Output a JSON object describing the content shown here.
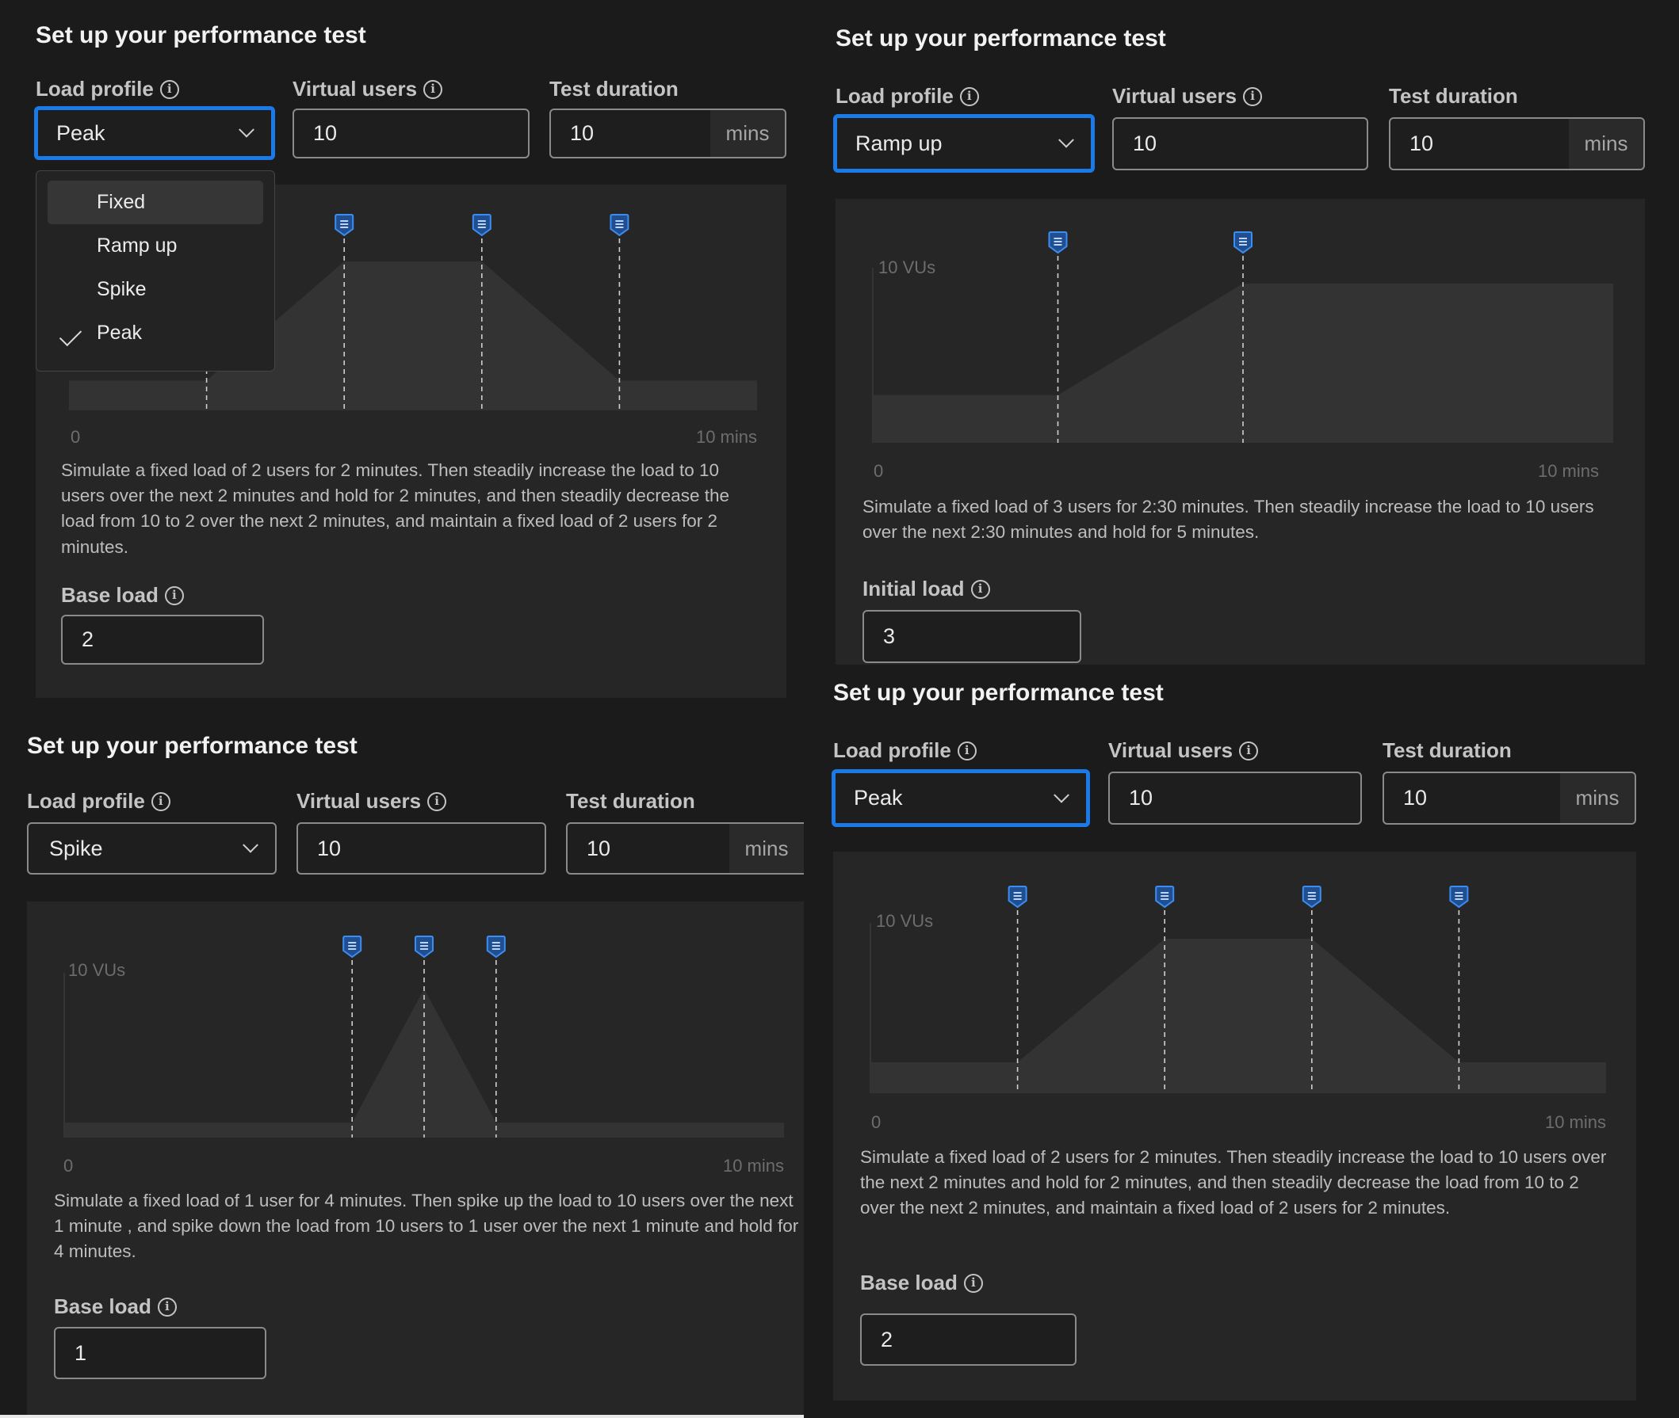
{
  "panel1": {
    "title": "Set up your performance test",
    "load_profile_label": "Load profile",
    "virtual_users_label": "Virtual users",
    "test_duration_label": "Test duration",
    "load_profile_value": "Peak",
    "virtual_users_value": "10",
    "test_duration_value": "10",
    "duration_unit": "mins",
    "dropdown": {
      "items": [
        {
          "label": "Fixed",
          "state": "hover"
        },
        {
          "label": "Ramp up"
        },
        {
          "label": "Spike"
        },
        {
          "label": "Peak",
          "state": "selected"
        }
      ]
    },
    "chart_data": {
      "type": "area",
      "x": [
        0,
        2,
        4,
        6,
        8,
        10
      ],
      "values": [
        2,
        2,
        10,
        10,
        2,
        2
      ],
      "markers_x": [
        2,
        4,
        6,
        8
      ],
      "xlim": [
        0,
        10
      ],
      "ylim": [
        0,
        10
      ],
      "x_start_label": "0",
      "x_end_label": "10 mins"
    },
    "description": "Simulate a fixed load of 2 users for 2 minutes. Then steadily increase the load to 10 users over the next 2 minutes and hold for 2 minutes, and then steadily decrease the load from 10 to 2 over the next 2 minutes, and maintain a fixed load of 2 users for 2 minutes.",
    "extra_label": "Base load",
    "extra_value": "2"
  },
  "panel2": {
    "title": "Set up your performance test",
    "load_profile_label": "Load profile",
    "virtual_users_label": "Virtual users",
    "test_duration_label": "Test duration",
    "load_profile_value": "Ramp up",
    "virtual_users_value": "10",
    "test_duration_value": "10",
    "duration_unit": "mins",
    "chart_data": {
      "type": "area",
      "x": [
        0,
        2.5,
        5,
        10
      ],
      "values": [
        3,
        3,
        10,
        10
      ],
      "markers_x": [
        2.5,
        5
      ],
      "xlim": [
        0,
        10
      ],
      "ylim": [
        0,
        10
      ],
      "y_label": "10 VUs",
      "x_start_label": "0",
      "x_end_label": "10 mins"
    },
    "description": "Simulate a fixed load of 3 users for 2:30 minutes. Then steadily increase the load to 10 users over the next 2:30 minutes and hold for 5 minutes.",
    "extra_label": "Initial load",
    "extra_value": "3"
  },
  "panel3": {
    "title": "Set up your performance test",
    "load_profile_label": "Load profile",
    "virtual_users_label": "Virtual users",
    "test_duration_label": "Test duration",
    "load_profile_value": "Spike",
    "virtual_users_value": "10",
    "test_duration_value": "10",
    "duration_unit": "mins",
    "chart_data": {
      "type": "area",
      "x": [
        0,
        4,
        5,
        6,
        10
      ],
      "values": [
        1,
        1,
        10,
        1,
        1
      ],
      "markers_x": [
        4,
        5,
        6
      ],
      "xlim": [
        0,
        10
      ],
      "ylim": [
        0,
        10
      ],
      "y_label": "10 VUs",
      "x_start_label": "0",
      "x_end_label": "10 mins"
    },
    "description": "Simulate a fixed load of 1 user for 4 minutes. Then spike up the load to 10 users over the next 1 minute , and spike down the load from 10 users to 1 user over the next 1 minute and hold for 4 minutes.",
    "extra_label": "Base load",
    "extra_value": "1"
  },
  "panel4": {
    "title": "Set up your performance test",
    "load_profile_label": "Load profile",
    "virtual_users_label": "Virtual users",
    "test_duration_label": "Test duration",
    "load_profile_value": "Peak",
    "virtual_users_value": "10",
    "test_duration_value": "10",
    "duration_unit": "mins",
    "chart_data": {
      "type": "area",
      "x": [
        0,
        2,
        4,
        6,
        8,
        10
      ],
      "values": [
        2,
        2,
        10,
        10,
        2,
        2
      ],
      "markers_x": [
        2,
        4,
        6,
        8
      ],
      "xlim": [
        0,
        10
      ],
      "ylim": [
        0,
        10
      ],
      "y_label": "10 VUs",
      "x_start_label": "0",
      "x_end_label": "10 mins"
    },
    "description": "Simulate a fixed load of 2 users for 2 minutes. Then steadily increase the load to 10 users over the next 2 minutes and hold for 2 minutes, and then steadily decrease the load from 10 to 2 over the next 2 minutes, and maintain a fixed load of 2 users for 2 minutes.",
    "extra_label": "Base load",
    "extra_value": "2"
  },
  "colors": {
    "accent": "#1c7ae8",
    "background": "#1b1b1c",
    "card": "#262627",
    "area_fill": "#333334",
    "marker": "#1f6fd6"
  }
}
